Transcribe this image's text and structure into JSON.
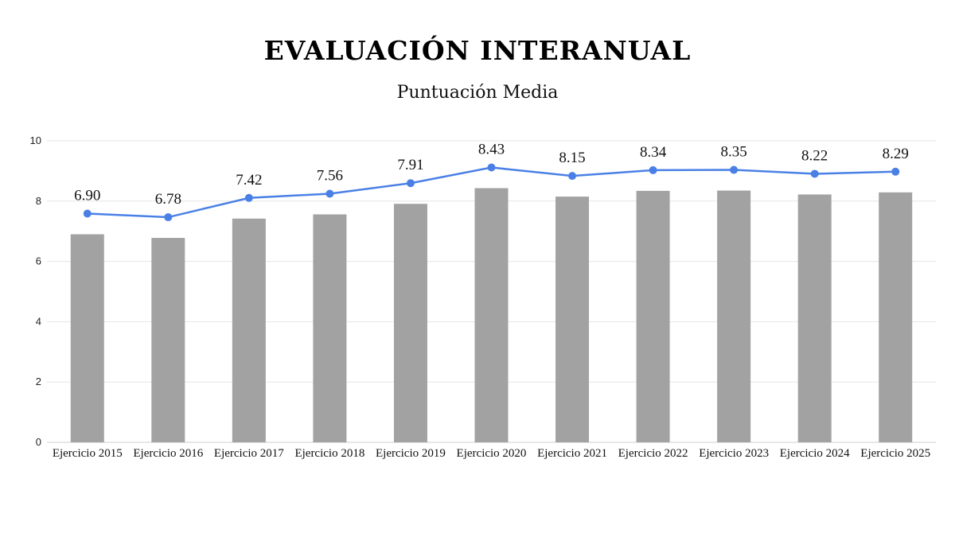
{
  "chart_data": {
    "type": "bar",
    "title": "EVALUACIÓN INTERANUAL",
    "subtitle": "Puntuación Media",
    "categories": [
      "Ejercicio 2015",
      "Ejercicio 2016",
      "Ejercicio 2017",
      "Ejercicio 2018",
      "Ejercicio 2019",
      "Ejercicio 2020",
      "Ejercicio 2021",
      "Ejercicio 2022",
      "Ejercicio 2023",
      "Ejercicio 2024",
      "Ejercicio 2025"
    ],
    "series": [
      {
        "kind": "bar",
        "values": [
          6.9,
          6.78,
          7.42,
          7.56,
          7.91,
          8.43,
          8.15,
          8.34,
          8.35,
          8.22,
          8.29
        ],
        "color": "#a2a2a2"
      },
      {
        "kind": "line",
        "values": [
          6.9,
          6.78,
          7.42,
          7.56,
          7.91,
          8.43,
          8.15,
          8.34,
          8.35,
          8.22,
          8.29
        ],
        "color": "#4a80e6"
      }
    ],
    "data_labels": [
      "6.90",
      "6.78",
      "7.42",
      "7.56",
      "7.91",
      "8.43",
      "8.15",
      "8.34",
      "8.35",
      "8.22",
      "8.29"
    ],
    "ylim": [
      0,
      10
    ],
    "yticks": [
      0,
      2,
      4,
      6,
      8,
      10
    ],
    "grid": true,
    "legend": "none"
  }
}
